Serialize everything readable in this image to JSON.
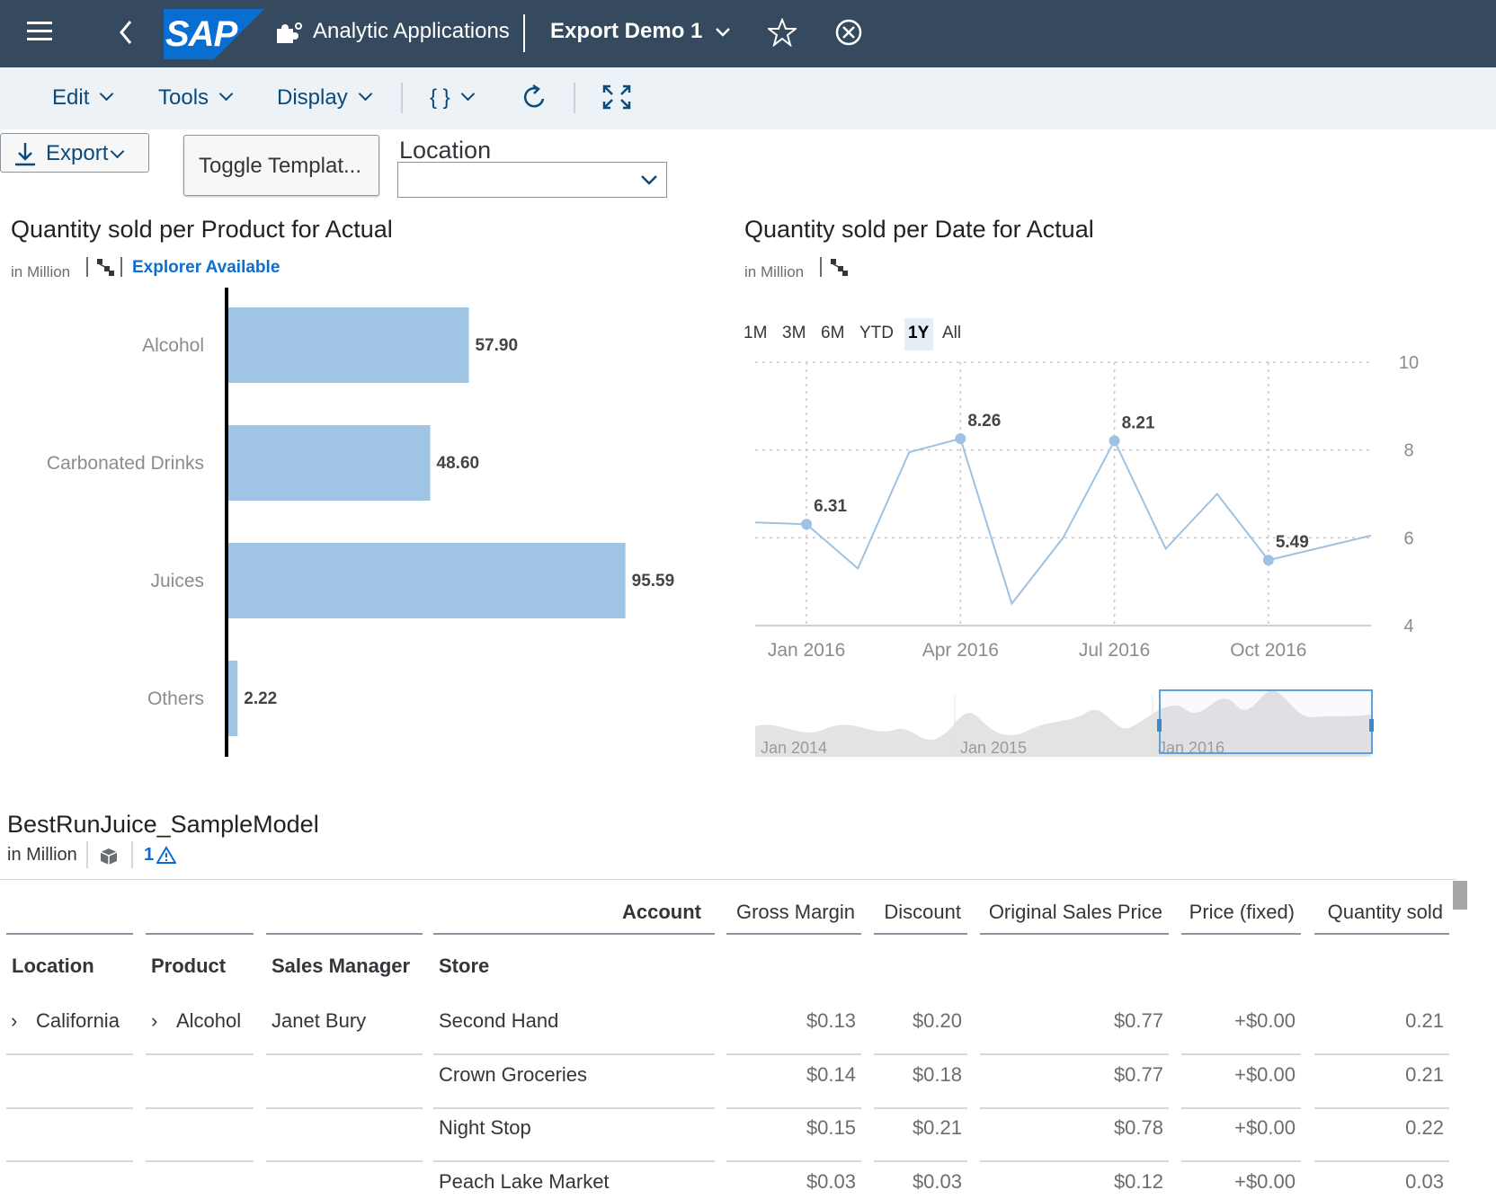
{
  "shell": {
    "logo": "SAP",
    "app_title": "Analytic Applications",
    "story_title": "Export Demo 1",
    "icons": [
      "menu-icon",
      "back-icon",
      "puzzle-icon",
      "chevron-down-icon",
      "star-icon",
      "close-circle-icon"
    ]
  },
  "toolbar": {
    "edit": "Edit",
    "tools": "Tools",
    "display": "Display",
    "script_symbol": "{ }"
  },
  "controls": {
    "export_label": "Export",
    "toggle_label": "Toggle Templat...",
    "location_label": "Location",
    "location_value": ""
  },
  "bar_chart": {
    "title": "Quantity sold per Product for Actual",
    "unit": "in Million",
    "explorer": "Explorer Available",
    "color": "#a0c4e4"
  },
  "line_chart": {
    "title": "Quantity sold per Date for Actual",
    "unit": "in Million",
    "ranges": [
      "1M",
      "3M",
      "6M",
      "YTD",
      "1Y",
      "All"
    ],
    "selected_range": "1Y",
    "color": "#9dc2e3",
    "navigator_labels": [
      "Jan 2014",
      "Jan 2015",
      "Jan 2016"
    ]
  },
  "chart_data": [
    {
      "type": "bar",
      "orientation": "horizontal",
      "title": "Quantity sold per Product for Actual",
      "categories": [
        "Alcohol",
        "Carbonated Drinks",
        "Juices",
        "Others"
      ],
      "values": [
        57.9,
        48.6,
        95.59,
        2.22
      ],
      "labels": [
        "57.90",
        "48.60",
        "95.59",
        "2.22"
      ]
    },
    {
      "type": "line",
      "title": "Quantity sold per Date for Actual",
      "ylim": [
        4,
        10
      ],
      "y_ticks": [
        "10",
        "8",
        "6",
        "4"
      ],
      "x_ticks": [
        {
          "date": "2016-01",
          "label": "Jan 2016"
        },
        {
          "date": "2016-04",
          "label": "Apr 2016"
        },
        {
          "date": "2016-07",
          "label": "Jul 2016"
        },
        {
          "date": "2016-10",
          "label": "Oct 2016"
        }
      ],
      "points": [
        {
          "date": "2015-12",
          "value": 6.35
        },
        {
          "date": "2016-01",
          "value": 6.31,
          "label": "6.31"
        },
        {
          "date": "2016-02",
          "value": 5.3
        },
        {
          "date": "2016-03",
          "value": 7.95
        },
        {
          "date": "2016-04",
          "value": 8.26,
          "label": "8.26"
        },
        {
          "date": "2016-05",
          "value": 4.5
        },
        {
          "date": "2016-06",
          "value": 6.0
        },
        {
          "date": "2016-07",
          "value": 8.21,
          "label": "8.21"
        },
        {
          "date": "2016-08",
          "value": 5.75
        },
        {
          "date": "2016-09",
          "value": 7.0
        },
        {
          "date": "2016-10",
          "value": 5.49,
          "label": "5.49"
        },
        {
          "date": "2016-12",
          "value": 6.05
        }
      ]
    }
  ],
  "table": {
    "title": "BestRunJuice_SampleModel",
    "unit": "in Million",
    "warning_count": "1",
    "account_header": "Account",
    "measures": [
      "Gross Margin",
      "Discount",
      "Original Sales Price",
      "Price (fixed)",
      "Quantity sold"
    ],
    "dimensions": [
      "Location",
      "Product",
      "Sales Manager",
      "Store"
    ],
    "rows": [
      {
        "location": "California",
        "product": "Alcohol",
        "manager": "Janet Bury",
        "store": "Second Hand",
        "values": [
          "$0.13",
          "$0.20",
          "$0.77",
          "+$0.00",
          "0.21"
        ]
      },
      {
        "location": "",
        "product": "",
        "manager": "",
        "store": "Crown Groceries",
        "values": [
          "$0.14",
          "$0.18",
          "$0.77",
          "+$0.00",
          "0.21"
        ]
      },
      {
        "location": "",
        "product": "",
        "manager": "",
        "store": "Night Stop",
        "values": [
          "$0.15",
          "$0.21",
          "$0.78",
          "+$0.00",
          "0.22"
        ]
      },
      {
        "location": "",
        "product": "",
        "manager": "",
        "store": "Peach Lake Market",
        "values": [
          "$0.03",
          "$0.03",
          "$0.12",
          "+$0.00",
          "0.03"
        ]
      }
    ]
  }
}
